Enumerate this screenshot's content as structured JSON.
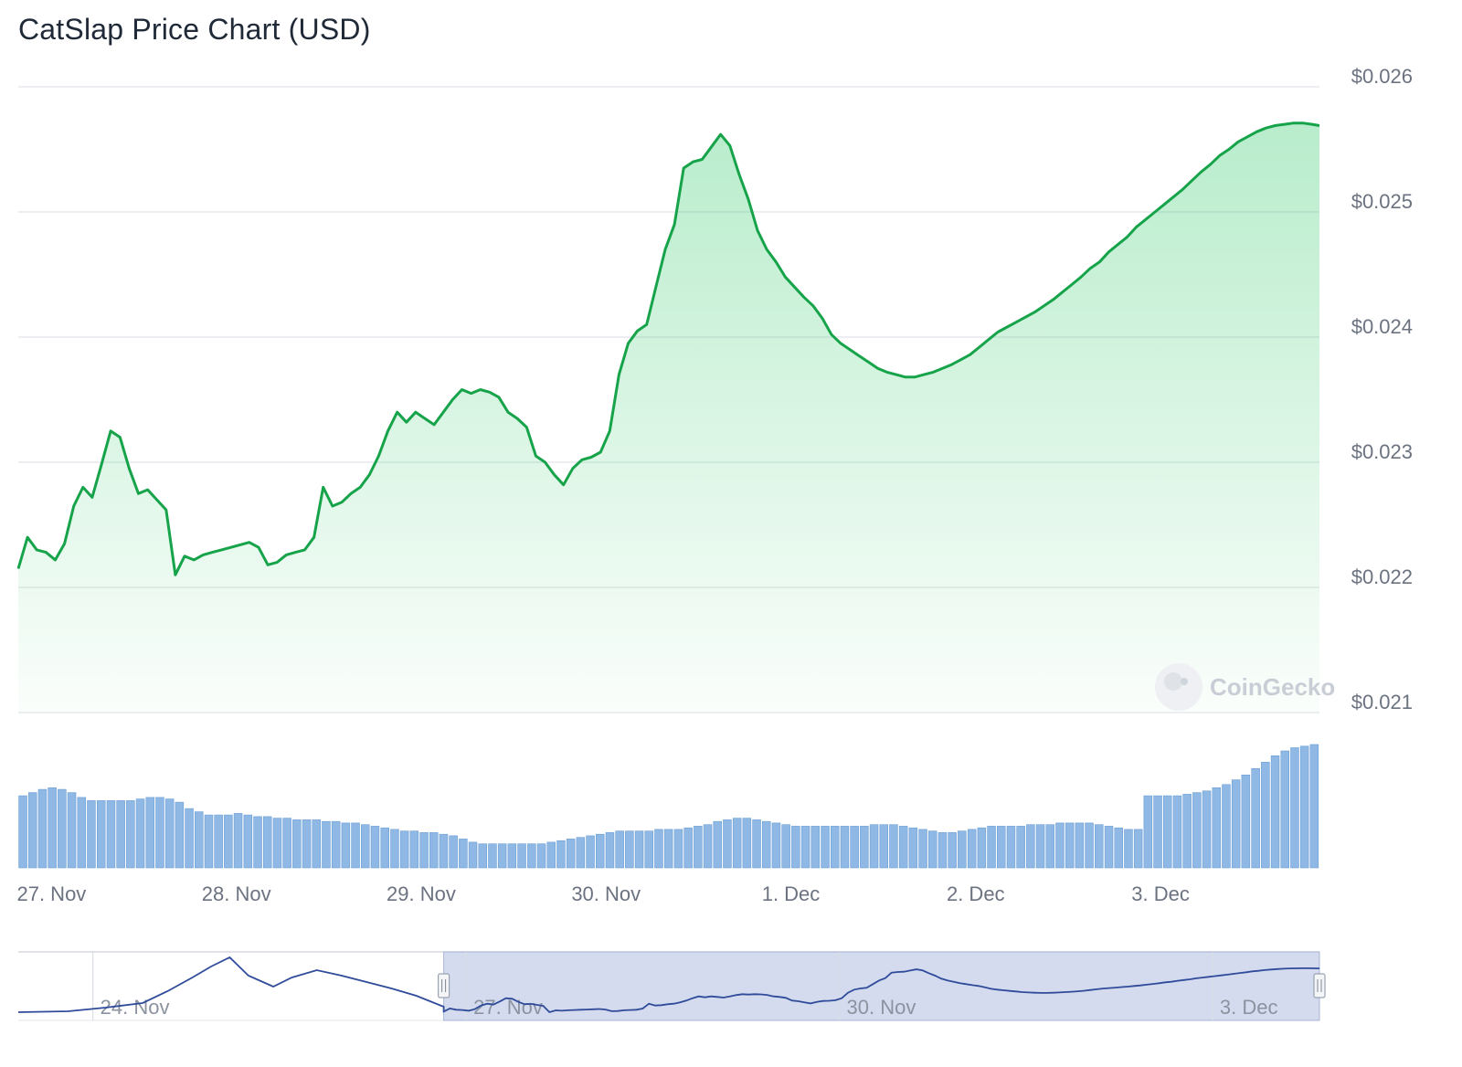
{
  "title": "CatSlap Price Chart (USD)",
  "watermark": "CoinGecko",
  "colors": {
    "price_line": "#16a34a",
    "area_fill": "#22c55e",
    "volume_bar": "#8fb8e4",
    "volume_bar_edge": "#6c9fd6",
    "navigator_line": "#2f4b9a",
    "navigator_mask": "#c6cfe8",
    "grid": "#e7e9ee"
  },
  "chart_data": {
    "type": "line",
    "ylim": [
      0.021,
      0.026
    ],
    "y_ticks": [
      "$0.026",
      "$0.025",
      "$0.024",
      "$0.023",
      "$0.022",
      "$0.021"
    ],
    "y_tick_values": [
      0.026,
      0.025,
      0.024,
      0.023,
      0.022,
      0.021
    ],
    "x_ticks": [
      "27. Nov",
      "28. Nov",
      "29. Nov",
      "30. Nov",
      "1. Dec",
      "2. Dec",
      "3. Dec"
    ],
    "x_tick_days": [
      27,
      28,
      29,
      30,
      31,
      32,
      33
    ],
    "x_range_days": [
      26.82,
      33.86
    ],
    "series": [
      {
        "x": [
          26.82,
          26.87,
          26.92,
          26.97,
          27.02,
          27.07,
          27.12,
          27.17,
          27.22,
          27.27,
          27.32,
          27.37,
          27.42,
          27.47,
          27.52,
          27.57,
          27.62,
          27.67,
          27.72,
          27.77,
          27.82,
          27.87,
          27.92,
          27.97,
          28.02,
          28.07,
          28.12,
          28.17,
          28.22,
          28.27,
          28.32,
          28.37,
          28.42,
          28.47,
          28.52,
          28.57,
          28.62,
          28.67,
          28.72,
          28.77,
          28.82,
          28.87,
          28.92,
          28.97,
          29.02,
          29.07,
          29.12,
          29.17,
          29.22,
          29.27,
          29.32,
          29.37,
          29.42,
          29.47,
          29.52,
          29.57,
          29.62,
          29.67,
          29.72,
          29.77,
          29.82,
          29.87,
          29.92,
          29.97,
          30.02,
          30.07,
          30.12,
          30.17,
          30.22,
          30.27,
          30.32,
          30.37,
          30.42,
          30.47,
          30.52,
          30.57,
          30.62,
          30.67,
          30.72,
          30.77,
          30.82,
          30.87,
          30.92,
          30.97,
          31.02,
          31.07,
          31.12,
          31.17,
          31.22,
          31.27,
          31.32,
          31.37,
          31.42,
          31.47,
          31.52,
          31.57,
          31.62,
          31.67,
          31.72,
          31.77,
          31.82,
          31.87,
          31.92,
          31.97,
          32.02,
          32.07,
          32.12,
          32.17,
          32.22,
          32.27,
          32.32,
          32.37,
          32.42,
          32.47,
          32.52,
          32.57,
          32.62,
          32.67,
          32.72,
          32.77,
          32.82,
          32.87,
          32.92,
          32.97,
          33.02,
          33.07,
          33.12,
          33.17,
          33.22,
          33.27,
          33.32,
          33.37,
          33.42,
          33.47,
          33.52,
          33.57,
          33.62,
          33.67,
          33.72,
          33.77,
          33.82,
          33.86
        ],
        "y": [
          0.02215,
          0.0224,
          0.0223,
          0.02228,
          0.02222,
          0.02235,
          0.02265,
          0.0228,
          0.02272,
          0.02298,
          0.02325,
          0.0232,
          0.02295,
          0.02275,
          0.02278,
          0.0227,
          0.02262,
          0.0221,
          0.02225,
          0.02222,
          0.02226,
          0.02228,
          0.0223,
          0.02232,
          0.02234,
          0.02236,
          0.02232,
          0.02218,
          0.0222,
          0.02226,
          0.02228,
          0.0223,
          0.0224,
          0.0228,
          0.02265,
          0.02268,
          0.02275,
          0.0228,
          0.0229,
          0.02305,
          0.02325,
          0.0234,
          0.02332,
          0.0234,
          0.02335,
          0.0233,
          0.0234,
          0.0235,
          0.02358,
          0.02355,
          0.02358,
          0.02356,
          0.02352,
          0.0234,
          0.02335,
          0.02328,
          0.02305,
          0.023,
          0.0229,
          0.02282,
          0.02295,
          0.02302,
          0.02304,
          0.02308,
          0.02325,
          0.0237,
          0.02395,
          0.02405,
          0.0241,
          0.0244,
          0.0247,
          0.0249,
          0.02535,
          0.0254,
          0.02542,
          0.02552,
          0.02562,
          0.02553,
          0.0253,
          0.0251,
          0.02485,
          0.0247,
          0.0246,
          0.02448,
          0.0244,
          0.02432,
          0.02425,
          0.02415,
          0.02402,
          0.02395,
          0.0239,
          0.02385,
          0.0238,
          0.02375,
          0.02372,
          0.0237,
          0.02368,
          0.02368,
          0.0237,
          0.02372,
          0.02375,
          0.02378,
          0.02382,
          0.02386,
          0.02392,
          0.02398,
          0.02404,
          0.02408,
          0.02412,
          0.02416,
          0.0242,
          0.02425,
          0.0243,
          0.02436,
          0.02442,
          0.02448,
          0.02455,
          0.0246,
          0.02468,
          0.02474,
          0.0248,
          0.02488,
          0.02494,
          0.025,
          0.02506,
          0.02512,
          0.02518,
          0.02525,
          0.02532,
          0.02538,
          0.02545,
          0.0255,
          0.02556,
          0.0256,
          0.02564,
          0.02567,
          0.02569,
          0.0257,
          0.02571,
          0.02571,
          0.0257,
          0.02569
        ]
      }
    ],
    "volume_note": "relative trading volume bars, unlabeled axis",
    "volume": [
      0.45,
      0.47,
      0.49,
      0.5,
      0.49,
      0.47,
      0.44,
      0.42,
      0.42,
      0.42,
      0.42,
      0.42,
      0.43,
      0.44,
      0.44,
      0.43,
      0.41,
      0.37,
      0.35,
      0.33,
      0.33,
      0.33,
      0.34,
      0.33,
      0.32,
      0.32,
      0.31,
      0.31,
      0.3,
      0.3,
      0.3,
      0.29,
      0.29,
      0.28,
      0.28,
      0.27,
      0.26,
      0.25,
      0.24,
      0.23,
      0.23,
      0.22,
      0.22,
      0.21,
      0.2,
      0.18,
      0.16,
      0.15,
      0.15,
      0.15,
      0.15,
      0.15,
      0.15,
      0.15,
      0.16,
      0.17,
      0.18,
      0.19,
      0.2,
      0.21,
      0.22,
      0.23,
      0.23,
      0.23,
      0.23,
      0.24,
      0.24,
      0.24,
      0.25,
      0.26,
      0.27,
      0.29,
      0.3,
      0.31,
      0.31,
      0.3,
      0.29,
      0.28,
      0.27,
      0.26,
      0.26,
      0.26,
      0.26,
      0.26,
      0.26,
      0.26,
      0.26,
      0.27,
      0.27,
      0.27,
      0.26,
      0.25,
      0.24,
      0.23,
      0.22,
      0.22,
      0.23,
      0.24,
      0.25,
      0.26,
      0.26,
      0.26,
      0.26,
      0.27,
      0.27,
      0.27,
      0.28,
      0.28,
      0.28,
      0.28,
      0.27,
      0.26,
      0.25,
      0.24,
      0.24,
      0.45,
      0.45,
      0.45,
      0.45,
      0.46,
      0.47,
      0.48,
      0.5,
      0.52,
      0.55,
      0.58,
      0.62,
      0.66,
      0.7,
      0.73,
      0.75,
      0.76,
      0.77
    ],
    "navigator": {
      "x_ticks": [
        "24. Nov",
        "27. Nov",
        "30. Nov",
        "3. Dec"
      ],
      "selected_range_days": [
        26.82,
        33.86
      ]
    }
  }
}
